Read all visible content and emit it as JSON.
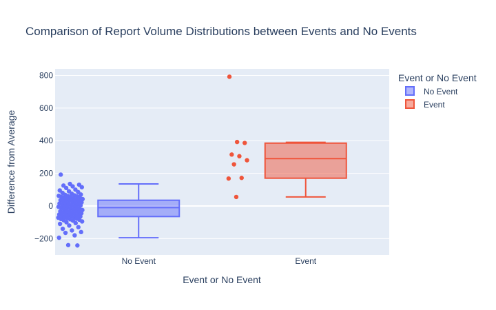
{
  "chart_data": {
    "type": "box",
    "title": "Comparison of Report Volume Distributions between Events and No Events",
    "xlabel": "Event or No Event",
    "ylabel": "Difference from Average",
    "categories": [
      "No Event",
      "Event"
    ],
    "ylim": [
      -300,
      840
    ],
    "yticks": [
      -200,
      0,
      200,
      400,
      600,
      800
    ],
    "ytick_labels": [
      "−200",
      "0",
      "200",
      "400",
      "600",
      "800"
    ],
    "grid": true,
    "legend": {
      "title": "Event or No Event",
      "position": "right"
    },
    "series": [
      {
        "name": "No Event",
        "color": "#636efa",
        "q1": -65,
        "median": -10,
        "q3": 35,
        "lowerfence": -195,
        "upperfence": 135,
        "points": [
          192,
          135,
          130,
          125,
          120,
          115,
          110,
          100,
          95,
          90,
          85,
          80,
          75,
          70,
          68,
          65,
          62,
          60,
          58,
          55,
          52,
          50,
          48,
          45,
          42,
          40,
          38,
          35,
          33,
          30,
          28,
          25,
          22,
          20,
          18,
          15,
          12,
          10,
          8,
          5,
          3,
          0,
          -2,
          -5,
          -8,
          -10,
          -12,
          -15,
          -18,
          -20,
          -22,
          -25,
          -28,
          -30,
          -33,
          -35,
          -38,
          -40,
          -42,
          -45,
          -48,
          -50,
          -52,
          -55,
          -58,
          -60,
          -62,
          -65,
          -68,
          -70,
          -72,
          -75,
          -78,
          -80,
          -82,
          -85,
          -88,
          -90,
          -95,
          -100,
          -105,
          -110,
          -120,
          -130,
          -140,
          -150,
          -160,
          -165,
          -180,
          -195,
          -240,
          -242
        ]
      },
      {
        "name": "Event",
        "color": "#ef553b",
        "q1": 170,
        "median": 290,
        "q3": 385,
        "lowerfence": 55,
        "upperfence": 390,
        "points": [
          792,
          392,
          386,
          315,
          305,
          280,
          255,
          172,
          168,
          55
        ]
      }
    ]
  }
}
